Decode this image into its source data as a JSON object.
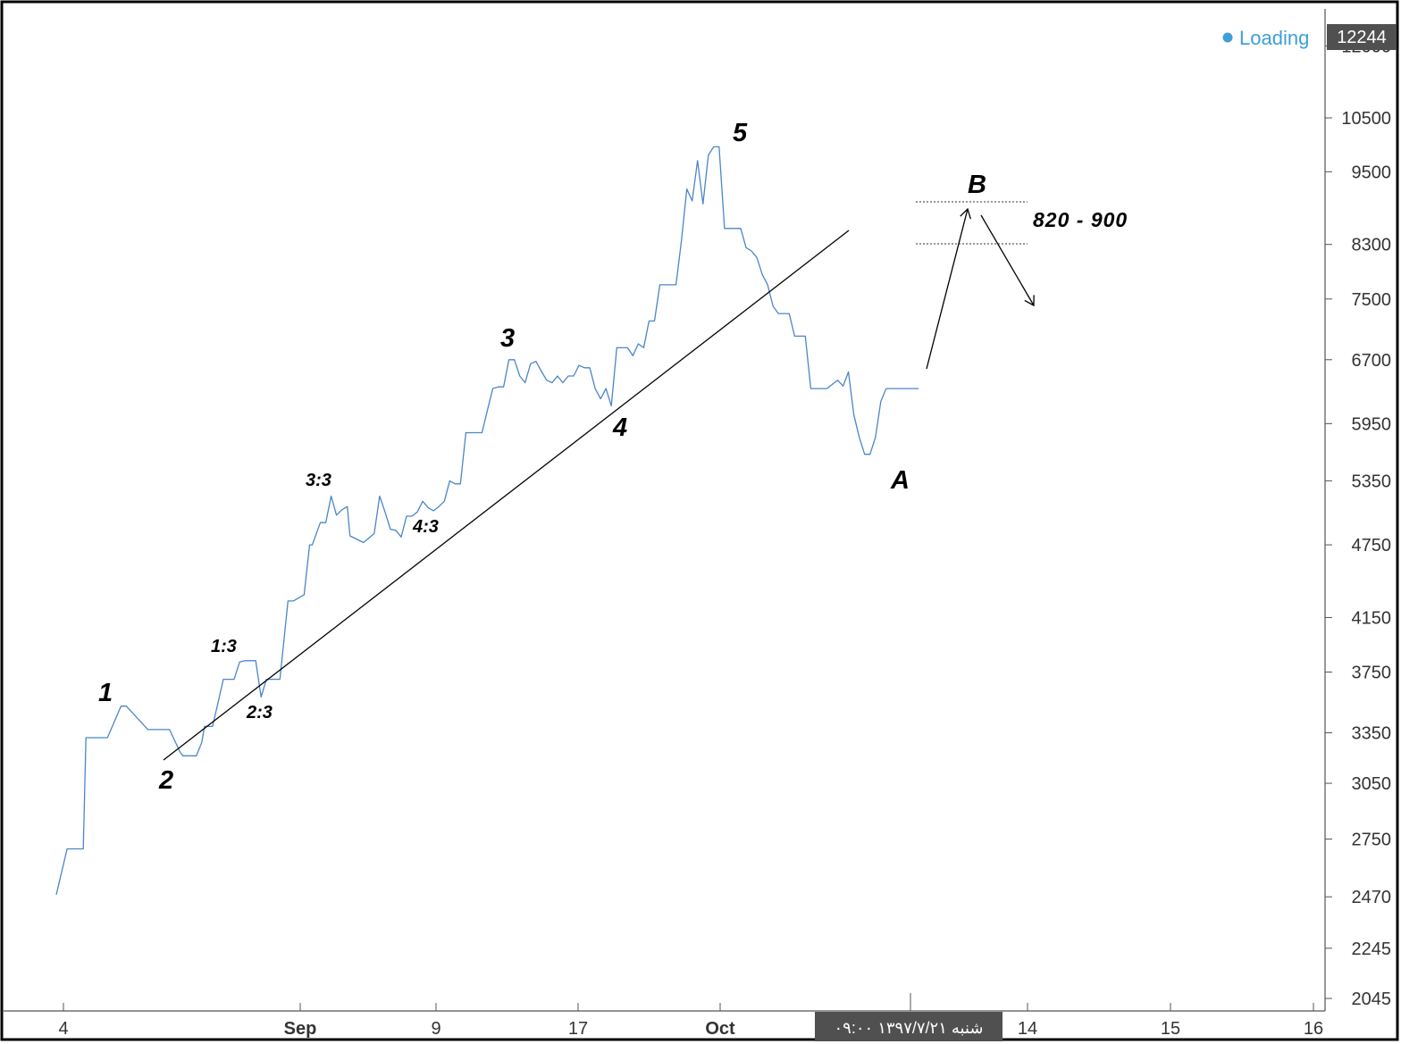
{
  "chart_data": {
    "type": "line",
    "title": "",
    "xlabel": "",
    "ylabel": "",
    "y_scale": "log",
    "y_ticks": [
      2045,
      2245,
      2470,
      2750,
      3050,
      3350,
      3750,
      4150,
      4750,
      5350,
      5950,
      6700,
      7500,
      8300,
      9500,
      10500
    ],
    "y_top_tick_partial": "12000",
    "x_ticks": [
      "4",
      "Sep",
      "9",
      "17",
      "Oct",
      "14",
      "15",
      "16"
    ],
    "x_ticks_bold": [
      "Sep",
      "Oct"
    ],
    "grid": false,
    "series": [
      {
        "color": "#4a86c8",
        "x": [
          0,
          2,
          5,
          5.5,
          9,
          9.5,
          12,
          13,
          17,
          17.5,
          21,
          23,
          23.5,
          24,
          26,
          27,
          27.5,
          28,
          29,
          31,
          31.5,
          33,
          34,
          35,
          36,
          37,
          38,
          39,
          40,
          41,
          41.5,
          43,
          44,
          46,
          47,
          47.5,
          49,
          50,
          51,
          52,
          53,
          54,
          54.5,
          57,
          59,
          60,
          61,
          62,
          63,
          64,
          65,
          66,
          67,
          68,
          69,
          70,
          71,
          72,
          73,
          74,
          75,
          76,
          77,
          78,
          79,
          80,
          81,
          82,
          83,
          84,
          85,
          86,
          87,
          88,
          89,
          90,
          91,
          92,
          93,
          94,
          95,
          96,
          97,
          98,
          99,
          100,
          101,
          102,
          103,
          104,
          105,
          106,
          107,
          108,
          109,
          110,
          111,
          112,
          113,
          114,
          115,
          116,
          117,
          118,
          119,
          120,
          121,
          122,
          123,
          124,
          125,
          126,
          127,
          128,
          129,
          130,
          131,
          132,
          133,
          134,
          135,
          136,
          137,
          138,
          139,
          140,
          141,
          142,
          143,
          144,
          145,
          146,
          147,
          148,
          149,
          150,
          151,
          152,
          153,
          154,
          155,
          156,
          157,
          158,
          159,
          160
        ],
        "y": [
          2480,
          2700,
          2700,
          3320,
          3320,
          3320,
          3520,
          3520,
          3370,
          3370,
          3370,
          3230,
          3210,
          3210,
          3210,
          3290,
          3390,
          3390,
          3390,
          3700,
          3700,
          3700,
          3820,
          3830,
          3830,
          3830,
          3580,
          3700,
          3700,
          3700,
          3700,
          4280,
          4280,
          4330,
          4750,
          4750,
          4950,
          4950,
          5200,
          5020,
          5070,
          5100,
          4830,
          4770,
          4850,
          5200,
          5050,
          4890,
          4880,
          4820,
          5010,
          5010,
          5050,
          5150,
          5090,
          5060,
          5100,
          5150,
          5350,
          5320,
          5320,
          5850,
          5850,
          5850,
          5850,
          6100,
          6350,
          6370,
          6370,
          6700,
          6700,
          6500,
          6420,
          6650,
          6680,
          6560,
          6450,
          6420,
          6500,
          6420,
          6500,
          6500,
          6630,
          6600,
          6600,
          6350,
          6230,
          6350,
          6150,
          6850,
          6850,
          6850,
          6750,
          6900,
          6850,
          7200,
          7200,
          7700,
          7700,
          7700,
          7700,
          8350,
          9200,
          9000,
          9700,
          8950,
          9800,
          9950,
          9950,
          8550,
          8550,
          8550,
          8550,
          8250,
          8200,
          8100,
          7850,
          7700,
          7400,
          7300,
          7300,
          7300,
          7000,
          7000,
          7000,
          6350,
          6350,
          6350,
          6350,
          6400,
          6450,
          6380,
          6550,
          6050,
          5800,
          5620,
          5620,
          5800,
          6200,
          6350,
          6350,
          6350,
          6350,
          6350,
          6350,
          6350
        ]
      }
    ],
    "annotations": {
      "wave_labels": [
        "1",
        "2",
        "1:3",
        "2:3",
        "3:3",
        "4:3",
        "3",
        "4",
        "5",
        "A",
        "B"
      ],
      "range_text": "820 - 900",
      "b_target_range": [
        8300,
        8900
      ]
    },
    "status_text": "Loading",
    "current_price_badge": "12244",
    "date_badge": "شنبه ۱۳۹۷/۷/۲۱ ۰۹:۰۰"
  }
}
